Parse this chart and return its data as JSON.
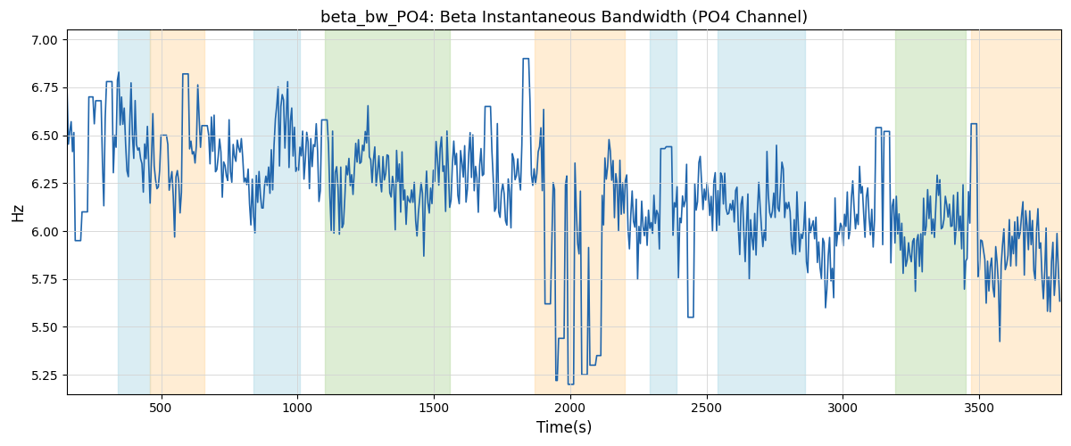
{
  "title": "beta_bw_PO4: Beta Instantaneous Bandwidth (PO4 Channel)",
  "xlabel": "Time(s)",
  "ylabel": "Hz",
  "xlim": [
    155,
    3800
  ],
  "ylim": [
    5.15,
    7.05
  ],
  "yticks": [
    5.25,
    5.5,
    5.75,
    6.0,
    6.25,
    6.5,
    6.75,
    7.0
  ],
  "xticks": [
    500,
    1000,
    1500,
    2000,
    2500,
    3000,
    3500
  ],
  "line_color": "#2166ac",
  "line_width": 1.2,
  "bg_color": "white",
  "shaded_regions": [
    {
      "xmin": 340,
      "xmax": 460,
      "color": "#add8e6",
      "alpha": 0.45
    },
    {
      "xmin": 460,
      "xmax": 660,
      "color": "#ffd9a0",
      "alpha": 0.45
    },
    {
      "xmin": 840,
      "xmax": 1010,
      "color": "#add8e6",
      "alpha": 0.45
    },
    {
      "xmin": 1100,
      "xmax": 1560,
      "color": "#b5d9a0",
      "alpha": 0.45
    },
    {
      "xmin": 1870,
      "xmax": 2200,
      "color": "#ffd9a0",
      "alpha": 0.45
    },
    {
      "xmin": 2290,
      "xmax": 2390,
      "color": "#add8e6",
      "alpha": 0.45
    },
    {
      "xmin": 2540,
      "xmax": 2860,
      "color": "#add8e6",
      "alpha": 0.45
    },
    {
      "xmin": 3190,
      "xmax": 3450,
      "color": "#b5d9a0",
      "alpha": 0.45
    },
    {
      "xmin": 3470,
      "xmax": 3800,
      "color": "#ffd9a0",
      "alpha": 0.45
    }
  ],
  "seed": 7,
  "n_points": 730,
  "x_start": 155,
  "x_end": 3795
}
